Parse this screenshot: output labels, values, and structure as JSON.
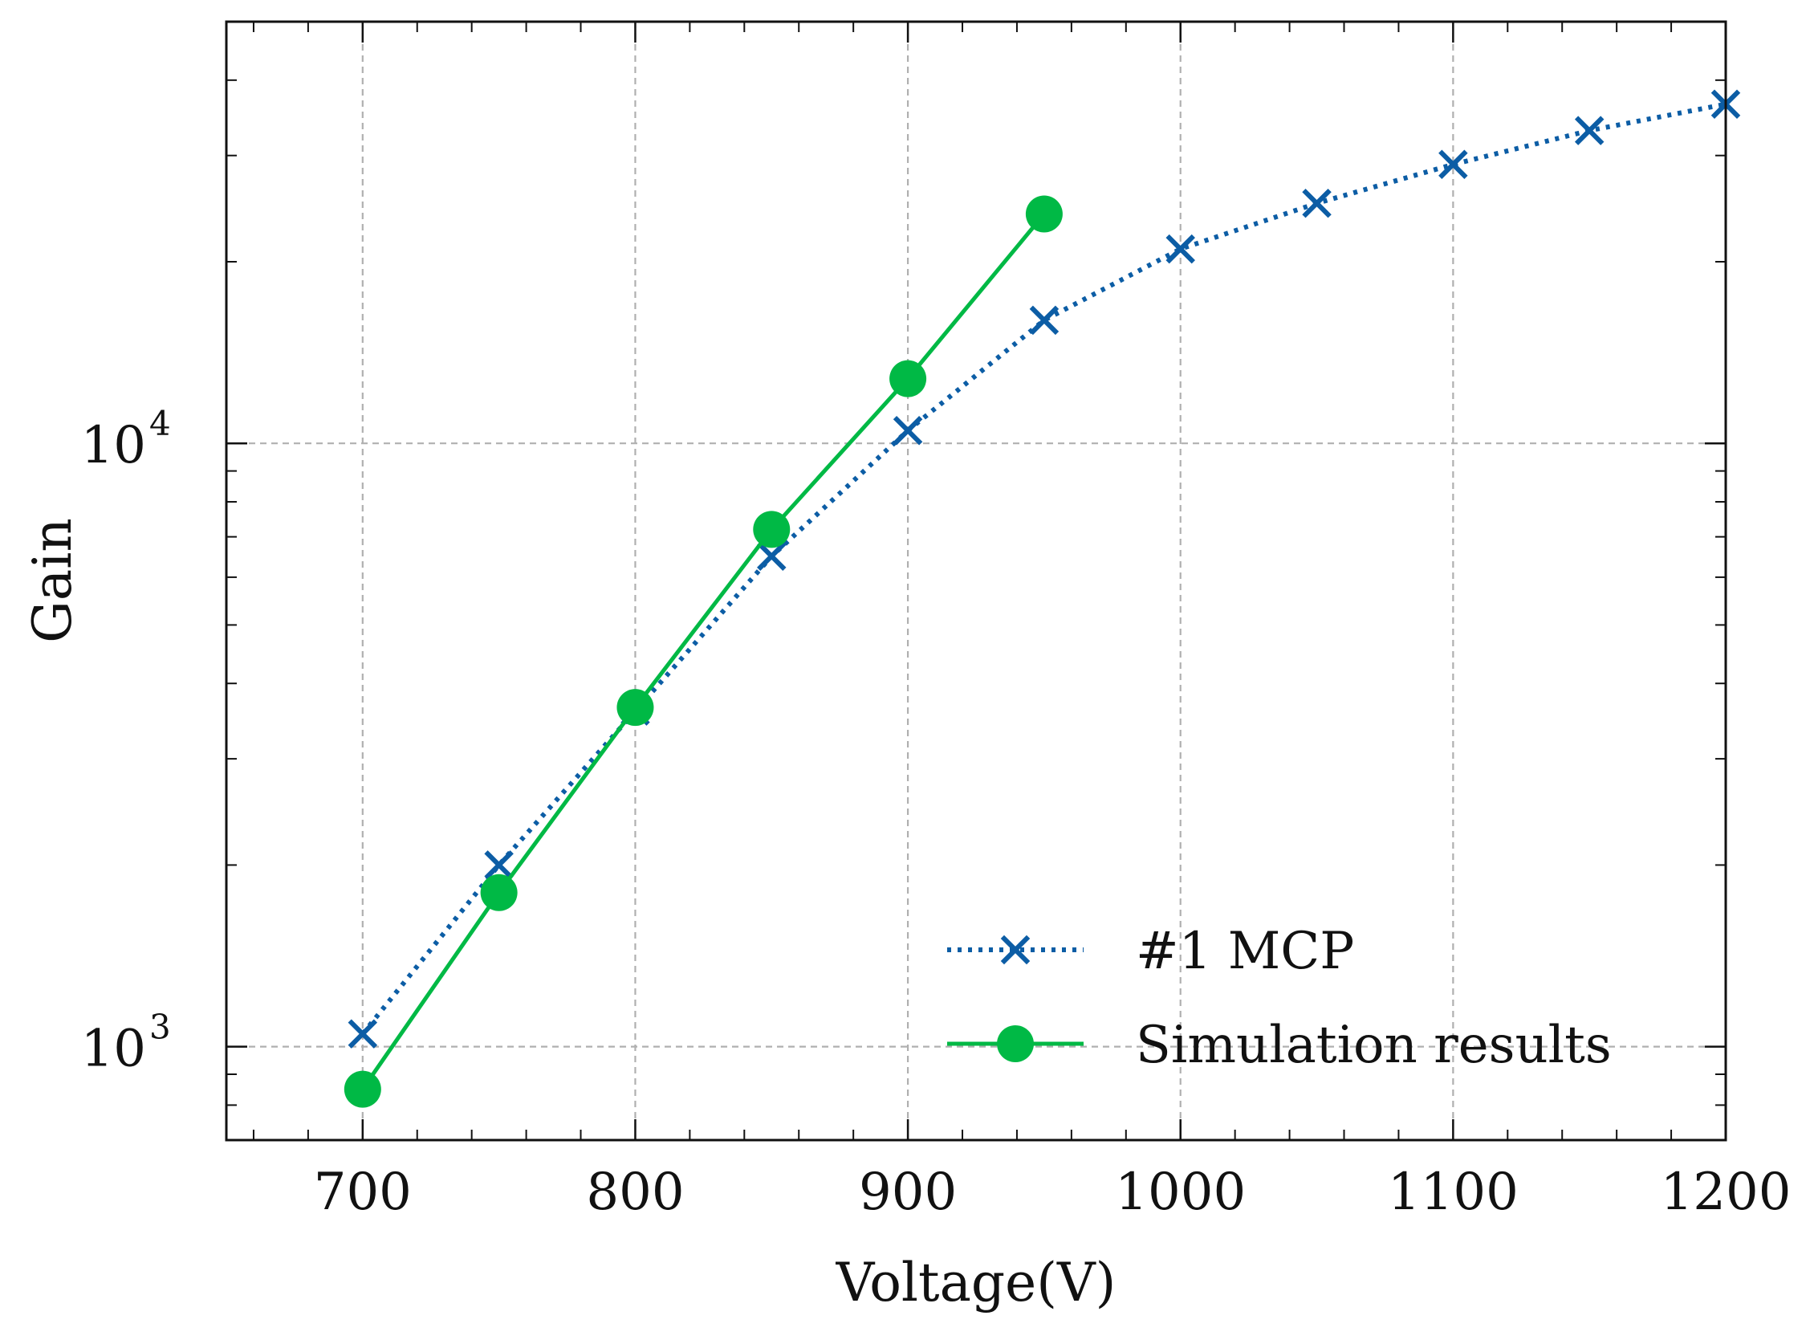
{
  "chart_data": {
    "type": "line",
    "title": "",
    "xlabel": "Voltage(V)",
    "ylabel": "Gain",
    "xlim": [
      650,
      1200
    ],
    "ylim": [
      700,
      50000
    ],
    "yscale": "log",
    "grid": true,
    "legend_position": "bottom-right",
    "x_ticks": [
      700,
      800,
      900,
      1000,
      1100,
      1200
    ],
    "x_tick_labels": [
      "700",
      "800",
      "900",
      "1000",
      "1100",
      "1200"
    ],
    "y_ticks": [
      {
        "value": 1000,
        "base": "10",
        "exp": "3"
      },
      {
        "value": 10000,
        "base": "10",
        "exp": "4"
      }
    ],
    "series": [
      {
        "name": "#1 MCP",
        "color": "#0C5DA5",
        "style": "dotted",
        "marker": "x",
        "x": [
          700,
          750,
          800,
          850,
          900,
          950,
          1000,
          1050,
          1100,
          1150,
          1200
        ],
        "y": [
          1050,
          2000,
          3600,
          6500,
          10500,
          16000,
          21000,
          25000,
          29000,
          33000,
          36500
        ]
      },
      {
        "name": "Simulation results",
        "color": "#00B945",
        "style": "solid",
        "marker": "o",
        "x": [
          700,
          750,
          800,
          850,
          900,
          950
        ],
        "y": [
          850,
          1800,
          3650,
          7200,
          12800,
          24000
        ]
      }
    ]
  }
}
